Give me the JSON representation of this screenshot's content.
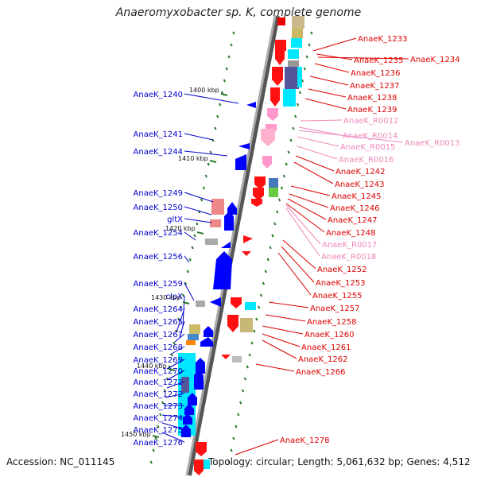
{
  "title": "Anaeromyxobacter sp. K, complete genome",
  "footer": {
    "accession": "Accession: NC_011145",
    "summary": "Topology: circular; Length: 5,061,632 bp; Genes: 4,512"
  },
  "colors": {
    "backbone": "#888888",
    "left_labels": "#0000cc",
    "right_labels": "#dd0000",
    "rna_labels": "#ee88bb",
    "tick": "#2a7a2a"
  },
  "ticks": [
    {
      "label": "1400 kbp"
    },
    {
      "label": "1410 kbp"
    },
    {
      "label": "1420 kbp"
    },
    {
      "label": "1430 kbp"
    },
    {
      "label": "1440 kbp"
    },
    {
      "label": "1450 kbp"
    }
  ],
  "left_labels": [
    {
      "text": "AnaeK_1240"
    },
    {
      "text": "AnaeK_1241"
    },
    {
      "text": "AnaeK_1244"
    },
    {
      "text": "AnaeK_1249"
    },
    {
      "text": "AnaeK_1250"
    },
    {
      "text": "gltX"
    },
    {
      "text": "AnaeK_1254"
    },
    {
      "text": "AnaeK_1256"
    },
    {
      "text": "AnaeK_1259"
    },
    {
      "text": "clpX"
    },
    {
      "text": "AnaeK_1264"
    },
    {
      "text": "AnaeK_1265"
    },
    {
      "text": "AnaeK_1267"
    },
    {
      "text": "AnaeK_1268"
    },
    {
      "text": "AnaeK_1269"
    },
    {
      "text": "AnaeK_1270"
    },
    {
      "text": "AnaeK_1271"
    },
    {
      "text": "AnaeK_1272"
    },
    {
      "text": "AnaeK_1273"
    },
    {
      "text": "AnaeK_1274"
    },
    {
      "text": "AnaeK_1275"
    },
    {
      "text": "AnaeK_1276"
    }
  ],
  "right_labels": [
    {
      "text": "AnaeK_1233",
      "kind": "gene"
    },
    {
      "text": "AnaeK_1235",
      "kind": "gene"
    },
    {
      "text": "AnaeK_1234",
      "kind": "gene"
    },
    {
      "text": "AnaeK_1236",
      "kind": "gene"
    },
    {
      "text": "AnaeK_1237",
      "kind": "gene"
    },
    {
      "text": "AnaeK_1238",
      "kind": "gene"
    },
    {
      "text": "AnaeK_1239",
      "kind": "gene"
    },
    {
      "text": "AnaeK_R0012",
      "kind": "rna"
    },
    {
      "text": "AnaeK_R0014",
      "kind": "rna"
    },
    {
      "text": "AnaeK_R0013",
      "kind": "rna"
    },
    {
      "text": "AnaeK_R0015",
      "kind": "rna"
    },
    {
      "text": "AnaeK_R0016",
      "kind": "rna"
    },
    {
      "text": "AnaeK_1242",
      "kind": "gene"
    },
    {
      "text": "AnaeK_1243",
      "kind": "gene"
    },
    {
      "text": "AnaeK_1245",
      "kind": "gene"
    },
    {
      "text": "AnaeK_1246",
      "kind": "gene"
    },
    {
      "text": "AnaeK_1247",
      "kind": "gene"
    },
    {
      "text": "AnaeK_1248",
      "kind": "gene"
    },
    {
      "text": "AnaeK_R0017",
      "kind": "rna"
    },
    {
      "text": "AnaeK_R0018",
      "kind": "rna"
    },
    {
      "text": "AnaeK_1252",
      "kind": "gene"
    },
    {
      "text": "AnaeK_1253",
      "kind": "gene"
    },
    {
      "text": "AnaeK_1255",
      "kind": "gene"
    },
    {
      "text": "AnaeK_1257",
      "kind": "gene"
    },
    {
      "text": "AnaeK_1258",
      "kind": "gene"
    },
    {
      "text": "AnaeK_1260",
      "kind": "gene"
    },
    {
      "text": "AnaeK_1261",
      "kind": "gene"
    },
    {
      "text": "AnaeK_1262",
      "kind": "gene"
    },
    {
      "text": "AnaeK_1266",
      "kind": "gene"
    },
    {
      "text": "AnaeK_1278",
      "kind": "gene"
    }
  ]
}
